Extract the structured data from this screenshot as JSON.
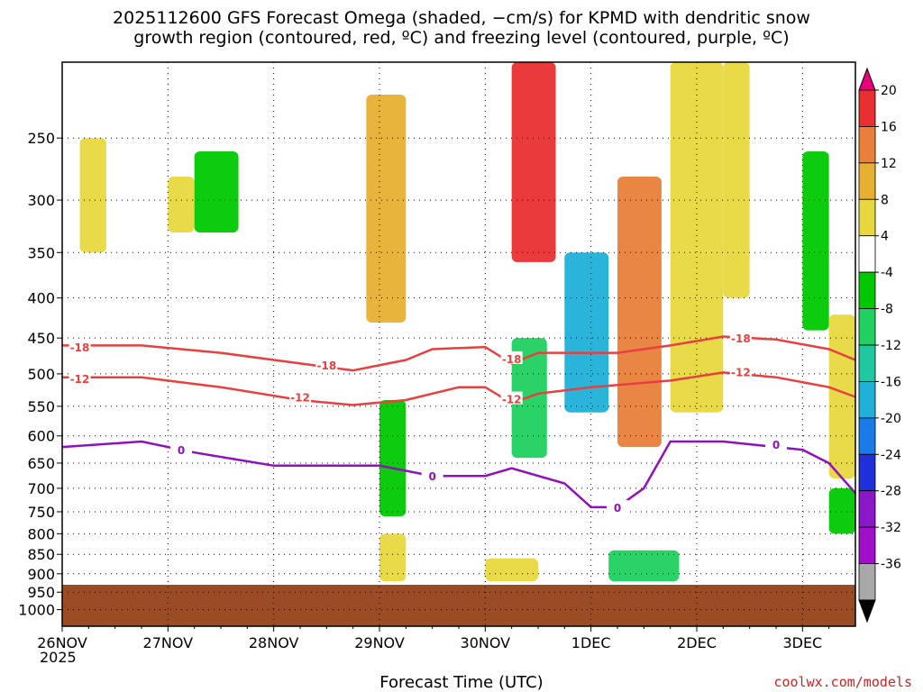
{
  "title_line1": "2025112600 GFS Forecast Omega (shaded, −cm/s) for KPMD with dendritic snow",
  "title_line2": "growth region (contoured, red, ºC) and freezing level (contoured, purple, ºC)",
  "xlabel": "Forecast Time (UTC)",
  "year_label": "2025",
  "credit": "coolwx.com/models",
  "chart_data": {
    "type": "heatmap",
    "title": "2025112600 GFS Forecast Omega (shaded, −cm/s) for KPMD with dendritic snow growth region (contoured, red, ºC) and freezing level (contoured, purple, ºC)",
    "xlabel": "Forecast Time (UTC)",
    "ylabel": "",
    "y_scale": "log-pressure, inverted",
    "ylim": [
      1050,
      200
    ],
    "xlim": [
      "2025-11-26T00",
      "2025-12-03T12"
    ],
    "grid": true,
    "x_ticks": [
      "26NOV",
      "27NOV",
      "28NOV",
      "29NOV",
      "30NOV",
      "1DEC",
      "2DEC",
      "3DEC"
    ],
    "y_ticks": [
      250,
      300,
      350,
      400,
      450,
      500,
      550,
      600,
      650,
      700,
      750,
      800,
      850,
      900,
      950,
      1000
    ],
    "colorbar": {
      "labels": [
        "20",
        "16",
        "12",
        "8",
        "4",
        "-4",
        "-8",
        "-12",
        "-16",
        "-20",
        "-24",
        "-28",
        "-32",
        "-36"
      ],
      "colors": [
        "#e8007a",
        "#e83030",
        "#e8803a",
        "#e8b030",
        "#e8d840",
        "#ffffff",
        "#00c800",
        "#20d060",
        "#20c8a0",
        "#20b0d8",
        "#1a7ae8",
        "#2030d8",
        "#8a18c8",
        "#a010c8",
        "#a8a8a8",
        "#000000"
      ]
    },
    "contours": [
      {
        "name": "-18",
        "color": "#e84040",
        "points": [
          [
            "2025-11-26T00",
            460
          ],
          [
            "2025-11-26T18",
            460
          ],
          [
            "2025-11-27T12",
            470
          ],
          [
            "2025-11-28T06",
            485
          ],
          [
            "2025-11-28T18",
            495
          ],
          [
            "2025-11-29T06",
            480
          ],
          [
            "2025-11-29T12",
            465
          ],
          [
            "2025-11-30T00",
            462
          ],
          [
            "2025-11-30T06",
            485
          ],
          [
            "2025-11-30T12",
            470
          ],
          [
            "2025-12-01T06",
            470
          ],
          [
            "2025-12-01T18",
            460
          ],
          [
            "2025-12-02T06",
            448
          ],
          [
            "2025-12-02T18",
            452
          ],
          [
            "2025-12-03T06",
            465
          ],
          [
            "2025-12-03T12",
            480
          ]
        ]
      },
      {
        "name": "-12",
        "color": "#e84040",
        "points": [
          [
            "2025-11-26T00",
            505
          ],
          [
            "2025-11-26T18",
            505
          ],
          [
            "2025-11-27T12",
            520
          ],
          [
            "2025-11-28T06",
            540
          ],
          [
            "2025-11-28T18",
            548
          ],
          [
            "2025-11-29T06",
            540
          ],
          [
            "2025-11-29T18",
            520
          ],
          [
            "2025-11-30T00",
            520
          ],
          [
            "2025-11-30T06",
            545
          ],
          [
            "2025-11-30T12",
            530
          ],
          [
            "2025-12-01T00",
            520
          ],
          [
            "2025-12-01T18",
            510
          ],
          [
            "2025-12-02T06",
            498
          ],
          [
            "2025-12-02T18",
            505
          ],
          [
            "2025-12-03T06",
            520
          ],
          [
            "2025-12-03T12",
            535
          ]
        ]
      },
      {
        "name": "0",
        "color": "#9010c0",
        "points": [
          [
            "2025-11-26T00",
            620
          ],
          [
            "2025-11-26T18",
            610
          ],
          [
            "2025-11-27T06",
            630
          ],
          [
            "2025-11-28T00",
            655
          ],
          [
            "2025-11-29T00",
            655
          ],
          [
            "2025-11-29T12",
            675
          ],
          [
            "2025-11-30T00",
            675
          ],
          [
            "2025-11-30T06",
            660
          ],
          [
            "2025-11-30T18",
            690
          ],
          [
            "2025-12-01T00",
            740
          ],
          [
            "2025-12-01T06",
            740
          ],
          [
            "2025-12-01T12",
            700
          ],
          [
            "2025-12-01T18",
            610
          ],
          [
            "2025-12-02T06",
            610
          ],
          [
            "2025-12-02T18",
            620
          ],
          [
            "2025-12-03T00",
            625
          ],
          [
            "2025-12-03T06",
            650
          ],
          [
            "2025-12-03T12",
            710
          ]
        ]
      }
    ],
    "contour_labels": [
      {
        "text": "-18",
        "x": "2025-11-26T04",
        "p": 462
      },
      {
        "text": "-18",
        "x": "2025-11-28T12",
        "p": 487
      },
      {
        "text": "-18",
        "x": "2025-11-30T06",
        "p": 478
      },
      {
        "text": "-18",
        "x": "2025-12-02T10",
        "p": 450
      },
      {
        "text": "-12",
        "x": "2025-11-26T04",
        "p": 507
      },
      {
        "text": "-12",
        "x": "2025-11-28T06",
        "p": 535
      },
      {
        "text": "-12",
        "x": "2025-11-30T06",
        "p": 538
      },
      {
        "text": "-12",
        "x": "2025-12-02T10",
        "p": 497
      },
      {
        "text": "0",
        "x": "2025-11-27T03",
        "p": 625
      },
      {
        "text": "0",
        "x": "2025-11-29T12",
        "p": 675
      },
      {
        "text": "0",
        "x": "2025-12-01T06",
        "p": 740
      },
      {
        "text": "0",
        "x": "2025-12-02T18",
        "p": 615
      }
    ],
    "omega_regions": [
      {
        "x": [
          "2025-11-26T04",
          "2025-11-26T10"
        ],
        "p": [
          250,
          350
        ],
        "value": 6
      },
      {
        "x": [
          "2025-11-27T00",
          "2025-11-27T06"
        ],
        "p": [
          280,
          330
        ],
        "value": 6
      },
      {
        "x": [
          "2025-11-27T06",
          "2025-11-27T16"
        ],
        "p": [
          260,
          330
        ],
        "value": -8
      },
      {
        "x": [
          "2025-11-28T21",
          "2025-11-29T06"
        ],
        "p": [
          220,
          430
        ],
        "value": 8
      },
      {
        "x": [
          "2025-11-29T00",
          "2025-11-29T06"
        ],
        "p": [
          540,
          760
        ],
        "value": -6
      },
      {
        "x": [
          "2025-11-29T00",
          "2025-11-29T06"
        ],
        "p": [
          800,
          920
        ],
        "value": 5
      },
      {
        "x": [
          "2025-11-30T06",
          "2025-11-30T16"
        ],
        "p": [
          200,
          360
        ],
        "value": 16
      },
      {
        "x": [
          "2025-11-30T06",
          "2025-11-30T14"
        ],
        "p": [
          450,
          640
        ],
        "value": -10
      },
      {
        "x": [
          "2025-11-30T00",
          "2025-11-30T12"
        ],
        "p": [
          860,
          920
        ],
        "value": 5
      },
      {
        "x": [
          "2025-11-30T18",
          "2025-12-01T04"
        ],
        "p": [
          350,
          560
        ],
        "value": -18
      },
      {
        "x": [
          "2025-12-01T06",
          "2025-12-01T16"
        ],
        "p": [
          280,
          620
        ],
        "value": 12
      },
      {
        "x": [
          "2025-12-01T04",
          "2025-12-01T20"
        ],
        "p": [
          840,
          920
        ],
        "value": -10
      },
      {
        "x": [
          "2025-12-01T18",
          "2025-12-02T06"
        ],
        "p": [
          200,
          560
        ],
        "value": 6
      },
      {
        "x": [
          "2025-12-02T06",
          "2025-12-02T12"
        ],
        "p": [
          200,
          400
        ],
        "value": 4
      },
      {
        "x": [
          "2025-12-03T00",
          "2025-12-03T06"
        ],
        "p": [
          260,
          440
        ],
        "value": -8
      },
      {
        "x": [
          "2025-12-03T06",
          "2025-12-03T12"
        ],
        "p": [
          420,
          680
        ],
        "value": 5
      },
      {
        "x": [
          "2025-12-03T06",
          "2025-12-03T12"
        ],
        "p": [
          700,
          800
        ],
        "value": -8
      }
    ]
  }
}
